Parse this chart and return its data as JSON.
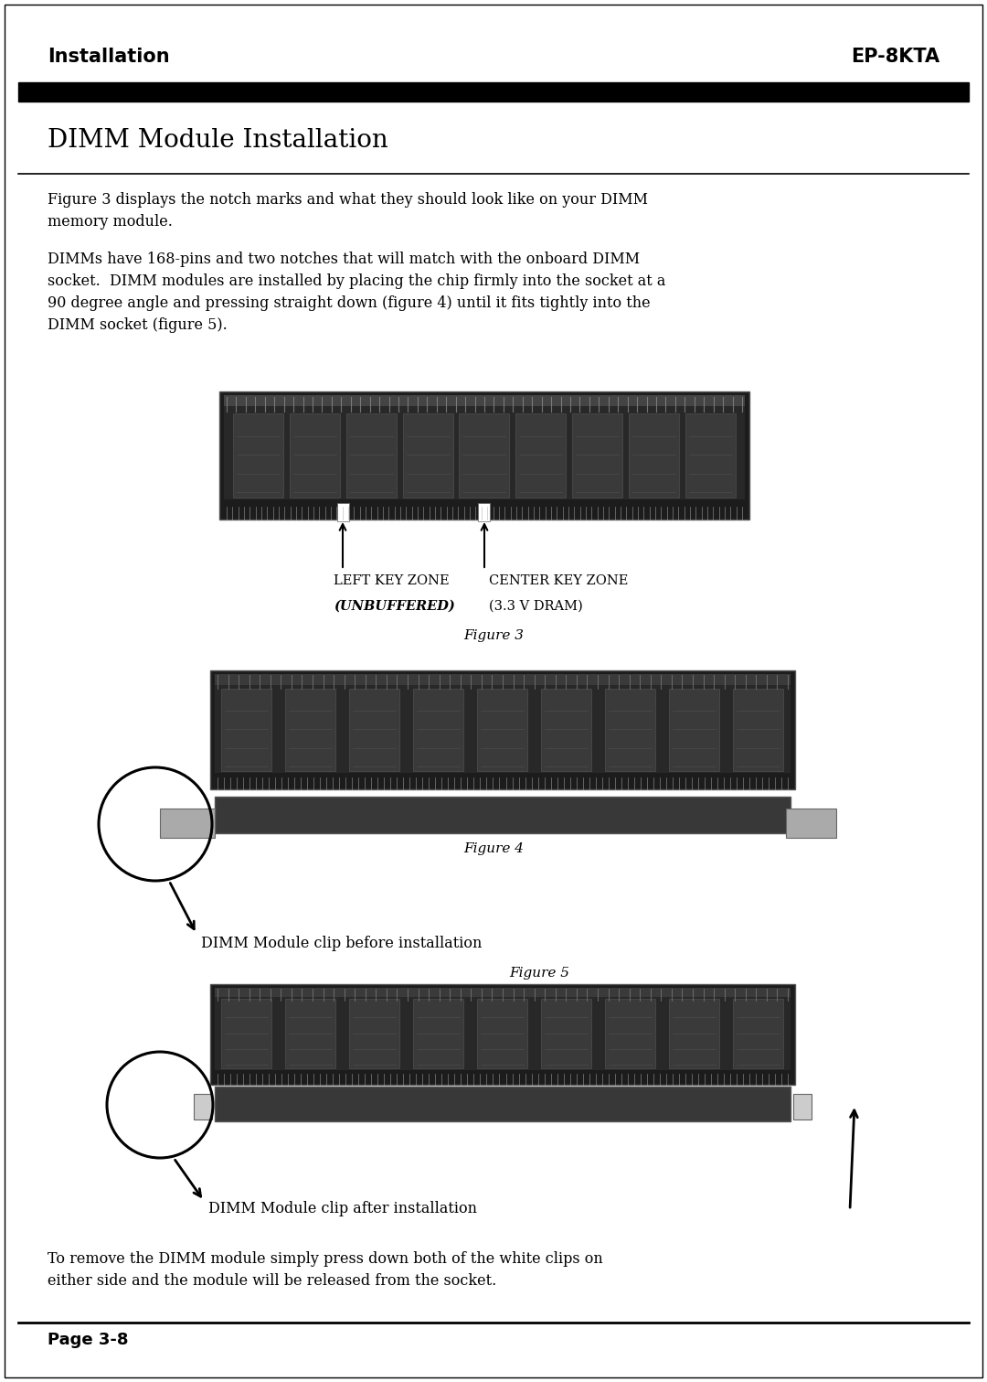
{
  "bg_color": "#ffffff",
  "header_left": "Installation",
  "header_right": "EP-8KTA",
  "header_fontsize": 15,
  "title": "DIMM Module Installation",
  "title_fontsize": 20,
  "para1": "Figure 3 displays the notch marks and what they should look like on your DIMM\nmemory module.",
  "para2": "DIMMs have 168-pins and two notches that will match with the onboard DIMM\nsocket.  DIMM modules are installed by placing the chip firmly into the socket at a\n90 degree angle and pressing straight down (figure 4) until it fits tightly into the\nDIMM socket (figure 5).",
  "fig3_caption": "Figure 3",
  "fig4_caption": "Figure 4",
  "fig5_caption": "Figure 5",
  "label_left_key": "LEFT KEY ZONE",
  "label_left_key_bold": "(UNBUFFERED)",
  "label_center_key": "CENTER KEY ZONE",
  "label_center_key2": "(3.3 V DRAM)",
  "label_fig4": "DIMM Module clip before installation",
  "label_fig5": "DIMM Module clip after installation",
  "footer_text": "To remove the DIMM module simply press down both of the white clips on\neither side and the module will be released from the socket.",
  "page_label": "Page 3-8",
  "text_color": "#000000",
  "body_fontsize": 11.5,
  "caption_fontsize": 11.0,
  "dimm_dark": "#1c1c1c",
  "dimm_mid": "#2e2e2e",
  "dimm_chip": "#3c3c3c",
  "dimm_chip2": "#444444",
  "socket_color": "#383838",
  "clip_color": "#888888"
}
